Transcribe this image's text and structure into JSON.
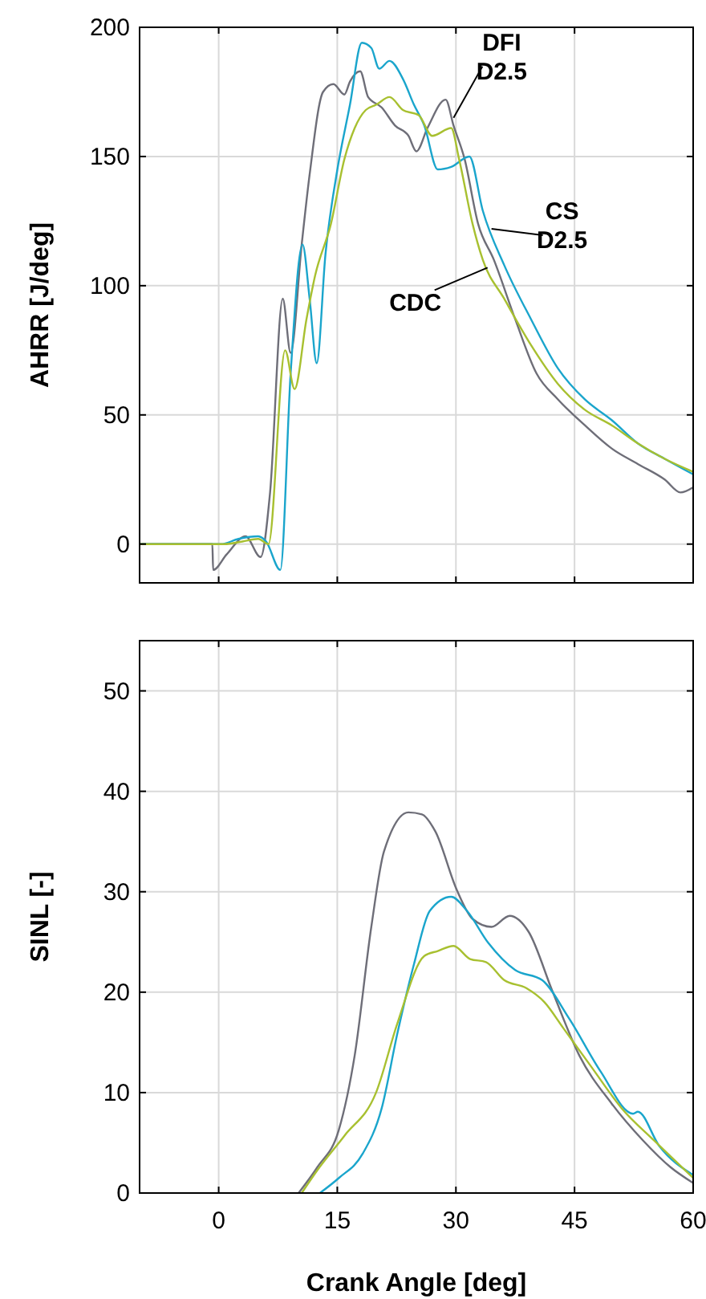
{
  "chart_data": [
    {
      "type": "line",
      "ylabel": "AHRR [J/deg]",
      "xlim": [
        -10,
        60
      ],
      "xticks": [
        0,
        15,
        30,
        45,
        60
      ],
      "ylim": [
        -15,
        200
      ],
      "yticks": [
        0,
        50,
        100,
        150,
        200
      ],
      "grid": true,
      "tick_labels": "y",
      "annotations": [
        {
          "text": "DFI\nD2.5",
          "x": 29.7,
          "y": 165
        },
        {
          "text": "CS\nD2.5",
          "x": 34.5,
          "y": 122
        },
        {
          "text": "CDC",
          "x": 34,
          "y": 107
        }
      ],
      "series": [
        {
          "color": "#6e6e78",
          "x": [
            -10,
            -0.8,
            -0.7,
            1,
            3.4,
            5.3,
            6.5,
            8.1,
            9.1,
            10.5,
            11.5,
            13.2,
            14.5,
            15.9,
            16.6,
            17.9,
            18.9,
            20.6,
            22.3,
            24,
            25,
            26.4,
            28.7,
            29.7,
            31.1,
            32.8,
            34.8,
            37.5,
            40.2,
            42.9,
            46.3,
            49.7,
            53,
            56.4,
            58.4,
            60
          ],
          "values": [
            0,
            0,
            -10,
            -4,
            3,
            -5,
            20,
            95,
            74,
            116,
            143,
            175,
            178,
            174,
            179,
            183,
            173,
            169,
            162,
            158,
            152,
            161,
            172,
            162,
            149,
            124,
            110,
            87,
            66,
            56,
            46,
            37,
            31,
            25,
            20,
            22
          ]
        },
        {
          "color": "#1aa5cc",
          "x": [
            -10,
            0.3,
            2.5,
            5,
            6,
            7.8,
            9.1,
            10.6,
            11.5,
            12.4,
            13.5,
            14.9,
            16.6,
            18.1,
            19.3,
            20.3,
            21.6,
            23.3,
            24.7,
            26,
            27.7,
            29.4,
            31.7,
            33.4,
            36.1,
            39.5,
            42.9,
            46.3,
            49.7,
            53,
            56.4,
            60
          ],
          "values": [
            0,
            0,
            2,
            3,
            1,
            -10,
            66,
            116,
            95,
            70,
            112,
            143,
            170,
            194,
            192,
            184,
            187,
            180,
            170,
            162,
            145,
            146,
            150,
            129,
            108,
            87,
            68,
            56,
            48,
            39,
            33,
            27
          ]
        },
        {
          "color": "#a8c030",
          "x": [
            -10,
            0.7,
            3,
            5,
            6.3,
            8.4,
            9.6,
            11.1,
            12.2,
            14.2,
            15.9,
            17.2,
            18.6,
            19.9,
            21.6,
            23.3,
            25.3,
            27,
            29.4,
            30.4,
            32.1,
            33.4,
            36.1,
            39.5,
            42.9,
            46.3,
            49.7,
            53,
            56.4,
            60
          ],
          "values": [
            0,
            0,
            1,
            2,
            0,
            75,
            60,
            87,
            104,
            124,
            149,
            161,
            168,
            170,
            173,
            168,
            166,
            158,
            161,
            149,
            124,
            110,
            95,
            77,
            62,
            52,
            46,
            39,
            33,
            28
          ]
        }
      ]
    },
    {
      "type": "line",
      "ylabel": "SINL [-]",
      "xlabel": "Crank Angle [deg]",
      "xlim": [
        -10,
        60
      ],
      "xticks": [
        0,
        15,
        30,
        45,
        60
      ],
      "ylim": [
        0,
        55
      ],
      "yticks": [
        0,
        10,
        20,
        30,
        40,
        50
      ],
      "grid": true,
      "series": [
        {
          "color": "#6e6e78",
          "x": [
            10.1,
            12.5,
            15.2,
            17.2,
            19.3,
            20.9,
            24,
            25.7,
            27.4,
            30.1,
            32.1,
            34.5,
            36.8,
            39.2,
            42.2,
            45.6,
            49.7,
            53.7,
            57.1,
            60
          ],
          "values": [
            0,
            2.6,
            6.3,
            13.7,
            26.5,
            34,
            37.9,
            37.7,
            36,
            30.2,
            27.3,
            26.5,
            27.6,
            26,
            20.1,
            13.7,
            8.9,
            5.2,
            2.6,
            1
          ]
        },
        {
          "color": "#1aa5cc",
          "x": [
            12.8,
            15.2,
            18.2,
            20.6,
            22.6,
            24.7,
            26.7,
            29.4,
            31.4,
            34.1,
            37.5,
            40.9,
            44.3,
            48.3,
            52.4,
            53,
            55.7,
            60
          ],
          "values": [
            0,
            1.5,
            3.9,
            8.4,
            15.9,
            22.8,
            28.1,
            29.5,
            28.1,
            24.9,
            22.2,
            21.2,
            17.4,
            12.1,
            7.9,
            8.1,
            4.7,
            1.8
          ]
        },
        {
          "color": "#a8c030",
          "x": [
            10.5,
            12.5,
            15.9,
            19.9,
            22.6,
            26,
            27.7,
            29.7,
            31.8,
            33.8,
            36.1,
            38.9,
            41.2,
            43.6,
            47,
            51,
            55.1,
            60
          ],
          "values": [
            0,
            2.3,
            5.7,
            10,
            16.9,
            23.6,
            24.1,
            24.6,
            23.3,
            23,
            21.2,
            20.4,
            19,
            16.4,
            12.7,
            8.4,
            5.2,
            1.5
          ]
        }
      ]
    }
  ]
}
